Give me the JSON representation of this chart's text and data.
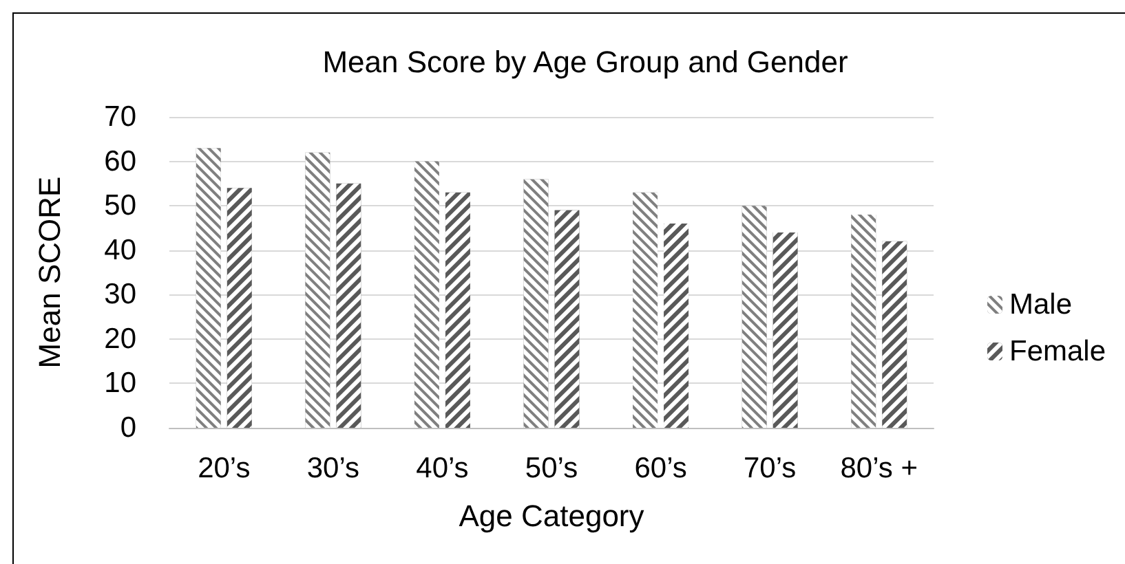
{
  "chart_data": {
    "type": "bar",
    "title": "Mean Score by Age Group and Gender",
    "xlabel": "Age Category",
    "ylabel": "Mean SCORE",
    "categories": [
      "20’s",
      "30’s",
      "40’s",
      "50’s",
      "60’s",
      "70’s",
      "80’s +"
    ],
    "series": [
      {
        "name": "Male",
        "color": "#7f7f7f",
        "values": [
          63,
          62,
          60,
          56,
          53,
          50,
          48
        ]
      },
      {
        "name": "Female",
        "color": "#595959",
        "values": [
          54,
          55,
          53,
          49,
          46,
          44,
          42
        ]
      }
    ],
    "ylim": [
      0,
      70
    ],
    "yticks": [
      0,
      10,
      20,
      30,
      40,
      50,
      60,
      70
    ],
    "grid": "y",
    "legend": "right"
  }
}
